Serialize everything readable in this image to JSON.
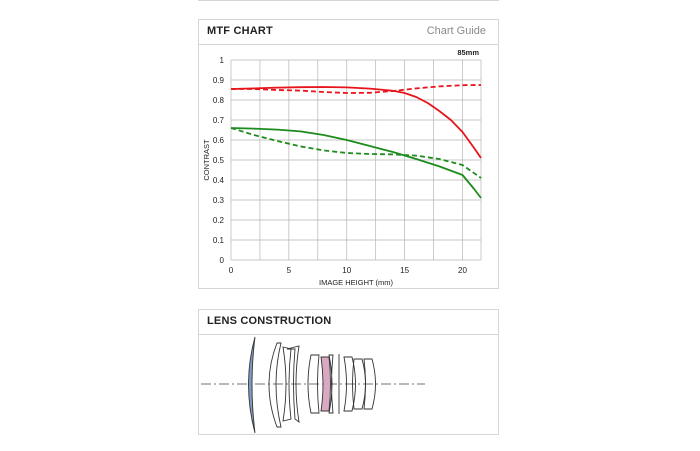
{
  "mtf_panel": {
    "title": "MTF CHART",
    "guide_link": "Chart Guide"
  },
  "lens_panel": {
    "title": "LENS CONSTRUCTION"
  },
  "colors": {
    "sagittal_high": "#e8141b",
    "sagittal_low": "#1d8c1d",
    "grid": "#b5b5b5",
    "highlight_element_blue": "#7f9cc6",
    "highlight_element_pink": "#d9a9c2"
  },
  "chart_data": {
    "type": "line",
    "title": "",
    "annotation": "85mm",
    "xlabel": "IMAGE HEIGHT (mm)",
    "ylabel": "CONTRAST",
    "xlim": [
      0,
      21.6
    ],
    "ylim": [
      0,
      1
    ],
    "x_ticks": [
      "0",
      "5",
      "10",
      "15",
      "20"
    ],
    "y_ticks": [
      "0",
      "0.1",
      "0.2",
      "0.3",
      "0.4",
      "0.5",
      "0.6",
      "0.7",
      "0.8",
      "0.9",
      "1"
    ],
    "grid": true,
    "series": [
      {
        "color": "red",
        "style": "solid",
        "x": [
          0,
          2,
          4,
          6,
          8,
          10,
          12,
          14,
          15,
          16,
          17,
          18,
          19,
          20,
          21,
          21.6
        ],
        "y": [
          0.855,
          0.858,
          0.862,
          0.864,
          0.865,
          0.863,
          0.857,
          0.846,
          0.835,
          0.815,
          0.785,
          0.745,
          0.7,
          0.64,
          0.56,
          0.51
        ]
      },
      {
        "color": "red",
        "style": "dashed",
        "x": [
          0,
          2,
          4,
          6,
          8,
          10,
          12,
          14,
          16,
          18,
          20,
          21.6
        ],
        "y": [
          0.855,
          0.855,
          0.85,
          0.847,
          0.84,
          0.835,
          0.836,
          0.845,
          0.858,
          0.868,
          0.874,
          0.875
        ]
      },
      {
        "color": "green",
        "style": "solid",
        "x": [
          0,
          2,
          4,
          6,
          8,
          10,
          12,
          14,
          16,
          18,
          20,
          21,
          21.6
        ],
        "y": [
          0.66,
          0.657,
          0.652,
          0.643,
          0.625,
          0.6,
          0.57,
          0.54,
          0.505,
          0.468,
          0.425,
          0.355,
          0.31
        ]
      },
      {
        "color": "green",
        "style": "dashed",
        "x": [
          0,
          2,
          4,
          6,
          8,
          10,
          12,
          14,
          16,
          18,
          20,
          21.6
        ],
        "y": [
          0.66,
          0.625,
          0.595,
          0.568,
          0.548,
          0.535,
          0.53,
          0.528,
          0.522,
          0.505,
          0.475,
          0.41
        ]
      }
    ]
  }
}
